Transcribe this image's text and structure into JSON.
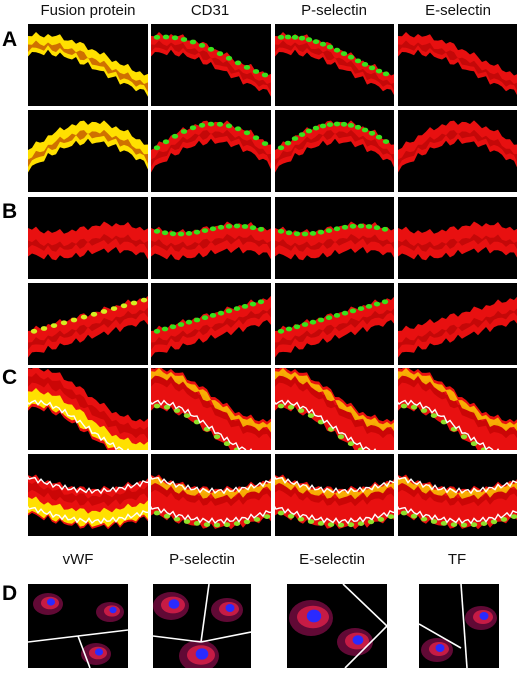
{
  "columns": {
    "fusion": "Fusion protein",
    "cd31": "CD31",
    "pselectin": "P-selectin",
    "eselectin": "E-selectin"
  },
  "rows": {
    "a": "A",
    "b": "B",
    "c": "C",
    "d": "D"
  },
  "d_columns": {
    "vwf": "vWF",
    "pselectin": "P-selectin",
    "eselectin": "E-selectin",
    "tf": "TF"
  },
  "colors": {
    "tissue_red": "#e81010",
    "fusion_yellow": "#ffe000",
    "stain_green": "#39e21c",
    "nucleus_blue": "#2a2aff",
    "background": "#000000",
    "outline": "#ffffff"
  }
}
